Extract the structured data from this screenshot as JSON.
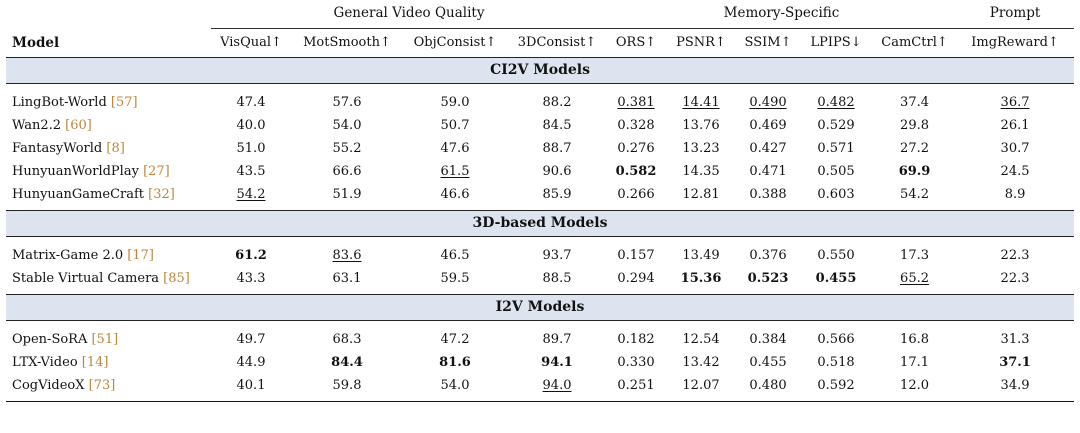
{
  "header": {
    "groups": [
      "General Video Quality",
      "Memory-Specific",
      "Prompt"
    ],
    "columns": [
      "Model",
      "VisQual↑",
      "MotSmooth↑",
      "ObjConsist↑",
      "3DConsist↑",
      "ORS↑",
      "PSNR↑",
      "SSIM↑",
      "LPIPS↓",
      "CamCtrl↑",
      "ImgReward↑"
    ]
  },
  "sections": [
    {
      "title": "CI2V Models",
      "rows": [
        {
          "name": "LingBot-World",
          "cite": "[57]",
          "values": [
            "47.4",
            "57.6",
            "59.0",
            "88.2",
            "0.381",
            "14.41",
            "0.490",
            "0.482",
            "37.4",
            "36.7"
          ],
          "bold": [],
          "underline": [
            4,
            5,
            6,
            7,
            9
          ]
        },
        {
          "name": "Wan2.2",
          "cite": "[60]",
          "values": [
            "40.0",
            "54.0",
            "50.7",
            "84.5",
            "0.328",
            "13.76",
            "0.469",
            "0.529",
            "29.8",
            "26.1"
          ],
          "bold": [],
          "underline": []
        },
        {
          "name": "FantasyWorld",
          "cite": "[8]",
          "values": [
            "51.0",
            "55.2",
            "47.6",
            "88.7",
            "0.276",
            "13.23",
            "0.427",
            "0.571",
            "27.2",
            "30.7"
          ],
          "bold": [],
          "underline": []
        },
        {
          "name": "HunyuanWorldPlay",
          "cite": "[27]",
          "values": [
            "43.5",
            "66.6",
            "61.5",
            "90.6",
            "0.582",
            "14.35",
            "0.471",
            "0.505",
            "69.9",
            "24.5"
          ],
          "bold": [
            4,
            8
          ],
          "underline": [
            2
          ]
        },
        {
          "name": "HunyuanGameCraft",
          "cite": "[32]",
          "values": [
            "54.2",
            "51.9",
            "46.6",
            "85.9",
            "0.266",
            "12.81",
            "0.388",
            "0.603",
            "54.2",
            "8.9"
          ],
          "bold": [],
          "underline": [
            0
          ]
        }
      ]
    },
    {
      "title": "3D-based Models",
      "rows": [
        {
          "name": "Matrix-Game 2.0",
          "cite": "[17]",
          "values": [
            "61.2",
            "83.6",
            "46.5",
            "93.7",
            "0.157",
            "13.49",
            "0.376",
            "0.550",
            "17.3",
            "22.3"
          ],
          "bold": [
            0
          ],
          "underline": [
            1
          ]
        },
        {
          "name": "Stable Virtual Camera",
          "cite": "[85]",
          "values": [
            "43.3",
            "63.1",
            "59.5",
            "88.5",
            "0.294",
            "15.36",
            "0.523",
            "0.455",
            "65.2",
            "22.3"
          ],
          "bold": [
            5,
            6,
            7
          ],
          "underline": [
            8
          ]
        }
      ]
    },
    {
      "title": "I2V Models",
      "rows": [
        {
          "name": "Open-SoRA",
          "cite": "[51]",
          "values": [
            "49.7",
            "68.3",
            "47.2",
            "89.7",
            "0.182",
            "12.54",
            "0.384",
            "0.566",
            "16.8",
            "31.3"
          ],
          "bold": [],
          "underline": []
        },
        {
          "name": "LTX-Video",
          "cite": "[14]",
          "values": [
            "44.9",
            "84.4",
            "81.6",
            "94.1",
            "0.330",
            "13.42",
            "0.455",
            "0.518",
            "17.1",
            "37.1"
          ],
          "bold": [
            1,
            2,
            3,
            9
          ],
          "underline": []
        },
        {
          "name": "CogVideoX",
          "cite": "[73]",
          "values": [
            "40.1",
            "59.8",
            "54.0",
            "94.0",
            "0.251",
            "12.07",
            "0.480",
            "0.592",
            "12.0",
            "34.9"
          ],
          "bold": [],
          "underline": [
            3
          ]
        }
      ]
    }
  ]
}
